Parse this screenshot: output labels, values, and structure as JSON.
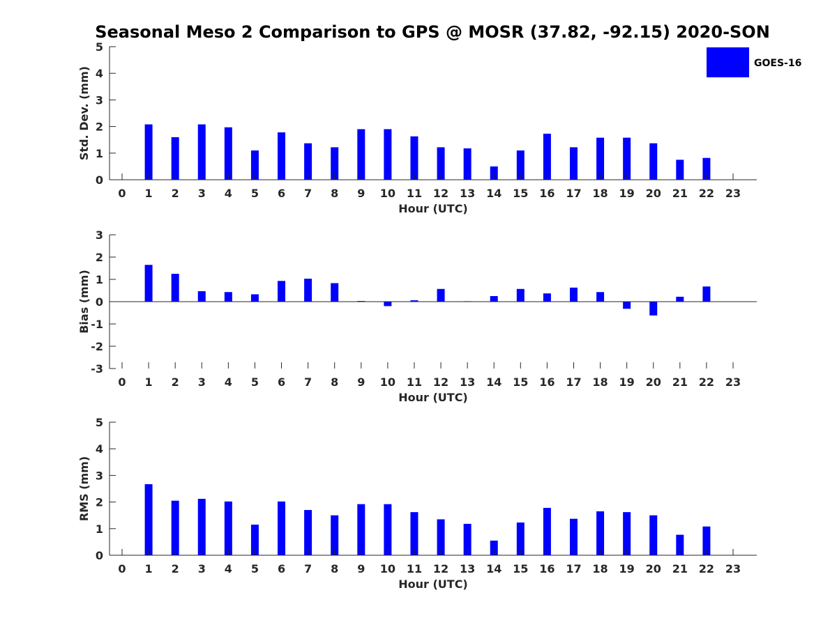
{
  "title": "Seasonal Meso 2 Comparison to GPS @ MOSR (37.82, -92.15) 2020-SON",
  "legend": {
    "label": "GOES-16",
    "color": "#0000ff",
    "placement": "top-right"
  },
  "chart_data": [
    {
      "type": "bar",
      "ylabel": "Std. Dev. (mm)",
      "xlabel": "Hour (UTC)",
      "ylim": [
        0,
        5
      ],
      "yticks": [
        0,
        1,
        2,
        3,
        4,
        5
      ],
      "grid": false,
      "categories": [
        0,
        1,
        2,
        3,
        4,
        5,
        6,
        7,
        8,
        9,
        10,
        11,
        12,
        13,
        14,
        15,
        16,
        17,
        18,
        19,
        20,
        21,
        22,
        23
      ],
      "series": [
        {
          "name": "GOES-16",
          "values": [
            null,
            2.08,
            1.6,
            2.08,
            1.97,
            1.1,
            1.78,
            1.37,
            1.22,
            1.9,
            1.9,
            1.63,
            1.22,
            1.18,
            0.5,
            1.1,
            1.73,
            1.22,
            1.58,
            1.58,
            1.37,
            0.75,
            0.82,
            null
          ]
        }
      ]
    },
    {
      "type": "bar",
      "ylabel": "Bias (mm)",
      "xlabel": "Hour (UTC)",
      "ylim": [
        -3,
        3
      ],
      "yticks": [
        -3,
        -2,
        -1,
        0,
        1,
        2,
        3
      ],
      "grid": false,
      "categories": [
        0,
        1,
        2,
        3,
        4,
        5,
        6,
        7,
        8,
        9,
        10,
        11,
        12,
        13,
        14,
        15,
        16,
        17,
        18,
        19,
        20,
        21,
        22,
        23
      ],
      "series": [
        {
          "name": "GOES-16",
          "values": [
            null,
            1.65,
            1.25,
            0.47,
            0.43,
            0.33,
            0.93,
            1.03,
            0.83,
            0.03,
            -0.2,
            0.06,
            0.57,
            0.02,
            0.25,
            0.57,
            0.37,
            0.63,
            0.43,
            -0.32,
            -0.62,
            0.22,
            0.68,
            null
          ]
        }
      ]
    },
    {
      "type": "bar",
      "ylabel": "RMS (mm)",
      "xlabel": "Hour (UTC)",
      "ylim": [
        0,
        5
      ],
      "yticks": [
        0,
        1,
        2,
        3,
        4,
        5
      ],
      "grid": false,
      "categories": [
        0,
        1,
        2,
        3,
        4,
        5,
        6,
        7,
        8,
        9,
        10,
        11,
        12,
        13,
        14,
        15,
        16,
        17,
        18,
        19,
        20,
        21,
        22,
        23
      ],
      "series": [
        {
          "name": "GOES-16",
          "values": [
            null,
            2.67,
            2.05,
            2.12,
            2.02,
            1.15,
            2.02,
            1.7,
            1.5,
            1.92,
            1.92,
            1.62,
            1.35,
            1.18,
            0.55,
            1.23,
            1.78,
            1.37,
            1.65,
            1.62,
            1.5,
            0.77,
            1.08,
            null
          ]
        }
      ]
    }
  ]
}
